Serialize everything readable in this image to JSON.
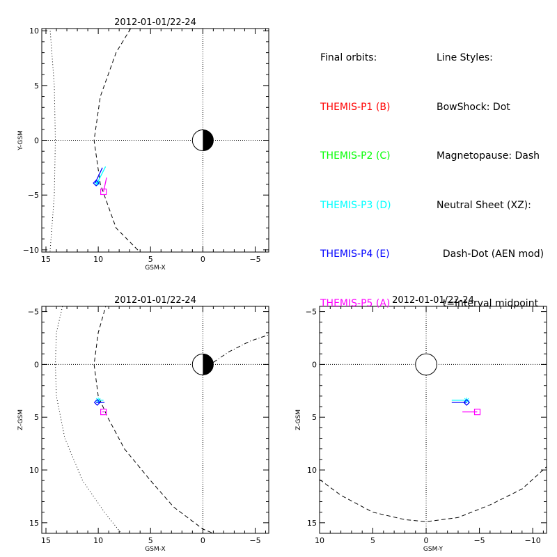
{
  "colors": {
    "p1": "#ff0000",
    "p2": "#00ff00",
    "p3": "#00ffff",
    "p4": "#0000ff",
    "p5": "#ff00ff",
    "axis": "#000000"
  },
  "legend": {
    "orbits_title": "Final orbits:",
    "probes": [
      {
        "label": "THEMIS-P1 (B)",
        "color": "#ff0000"
      },
      {
        "label": "THEMIS-P2 (C)",
        "color": "#00ff00"
      },
      {
        "label": "THEMIS-P3 (D)",
        "color": "#00ffff"
      },
      {
        "label": "THEMIS-P4 (E)",
        "color": "#0000ff"
      },
      {
        "label": "THEMIS-P5 (A)",
        "color": "#ff00ff"
      }
    ],
    "styles_title": "Line Styles:",
    "styles": [
      "BowShock: Dot",
      "Magnetopause: Dash",
      "Neutral Sheet (XZ):",
      "  Dash-Dot (AEN mod)",
      "  t=interval midpoint"
    ]
  },
  "chart_data": [
    {
      "id": "xy",
      "type": "scatter",
      "title": "2012-01-01/22-24",
      "xlabel": "GSM-X",
      "ylabel": "Y-GSM",
      "xlim": [
        15.4,
        -6.3
      ],
      "ylim": [
        10.2,
        -10.2
      ],
      "xticks": [
        15,
        10,
        5,
        0,
        -5
      ],
      "yticks": [
        -10,
        -5,
        0,
        5,
        10
      ],
      "grid": false,
      "zero_lines": true,
      "earth": {
        "x": 0,
        "y": 0,
        "r": 1
      },
      "bow_shock": [
        [
          15.5,
          19.6
        ],
        [
          14.8,
          12.6
        ],
        [
          14.2,
          5.0
        ],
        [
          14.1,
          0
        ],
        [
          14.2,
          -5.0
        ],
        [
          14.8,
          -12.6
        ],
        [
          15.5,
          -19.6
        ]
      ],
      "magnetopause": [
        [
          6.9,
          10.2
        ],
        [
          8.3,
          8.0
        ],
        [
          9.8,
          4.0
        ],
        [
          10.4,
          0
        ],
        [
          9.8,
          -4.0
        ],
        [
          8.3,
          -8.0
        ],
        [
          5.2,
          -11.0
        ]
      ],
      "neutral_sheet": [],
      "probes": [
        {
          "name": "THEMIS-P1",
          "track": [],
          "end": null,
          "symbol": "star"
        },
        {
          "name": "THEMIS-P2",
          "track": [],
          "end": null,
          "symbol": "plus"
        },
        {
          "name": "THEMIS-P3",
          "track": [
            [
              9.3,
              -2.4
            ],
            [
              10.1,
              -3.9
            ]
          ],
          "end": [
            10.1,
            -3.9
          ],
          "symbol": "star"
        },
        {
          "name": "THEMIS-P4",
          "track": [
            [
              9.6,
              -2.5
            ],
            [
              10.3,
              -3.9
            ]
          ],
          "end": [
            10.2,
            -3.9
          ],
          "symbol": "diamond"
        },
        {
          "name": "THEMIS-P5",
          "track": [
            [
              9.2,
              -3.4
            ],
            [
              9.5,
              -4.7
            ]
          ],
          "end": [
            9.5,
            -4.7
          ],
          "symbol": "square"
        }
      ]
    },
    {
      "id": "xz",
      "type": "scatter",
      "title": "2012-01-01/22-24",
      "xlabel": "GSM-X",
      "ylabel": "Z-GSM",
      "xlim": [
        15.4,
        -6.3
      ],
      "ylim": [
        -5.5,
        16.0
      ],
      "xticks": [
        15,
        10,
        5,
        0,
        -5
      ],
      "yticks": [
        -5,
        0,
        5,
        10,
        15
      ],
      "grid": false,
      "zero_lines": true,
      "earth": {
        "x": 0,
        "y": 0,
        "r": 1
      },
      "bow_shock": [
        [
          13.3,
          -6.0
        ],
        [
          14.0,
          -3.0
        ],
        [
          14.1,
          0
        ],
        [
          14.0,
          3.0
        ],
        [
          13.2,
          7.0
        ],
        [
          11.5,
          11.0
        ],
        [
          9.4,
          14.0
        ],
        [
          7.8,
          16.0
        ]
      ],
      "magnetopause": [
        [
          9.2,
          -5.8
        ],
        [
          10.0,
          -3.0
        ],
        [
          10.4,
          0
        ],
        [
          10.0,
          3.0
        ],
        [
          9.1,
          5.0
        ],
        [
          7.5,
          8.0
        ],
        [
          5.0,
          11.0
        ],
        [
          2.8,
          13.5
        ],
        [
          0,
          15.6
        ],
        [
          -1.0,
          16.0
        ]
      ],
      "neutral_sheet": [
        [
          -1.0,
          -0.2
        ],
        [
          -2.5,
          -1.2
        ],
        [
          -4.5,
          -2.2
        ],
        [
          -6.3,
          -2.8
        ]
      ],
      "probes": [
        {
          "name": "THEMIS-P1",
          "track": [],
          "end": null,
          "symbol": "star"
        },
        {
          "name": "THEMIS-P2",
          "track": [],
          "end": null,
          "symbol": "plus"
        },
        {
          "name": "THEMIS-P3",
          "track": [
            [
              9.5,
              3.4
            ],
            [
              10.1,
              3.4
            ]
          ],
          "end": [
            10.0,
            3.4
          ],
          "symbol": "star"
        },
        {
          "name": "THEMIS-P4",
          "track": [
            [
              9.4,
              3.6
            ],
            [
              10.2,
              3.6
            ]
          ],
          "end": [
            10.1,
            3.6
          ],
          "symbol": "diamond"
        },
        {
          "name": "THEMIS-P5",
          "track": [
            [
              9.4,
              4.5
            ],
            [
              9.6,
              4.5
            ]
          ],
          "end": [
            9.5,
            4.5
          ],
          "symbol": "square"
        }
      ]
    },
    {
      "id": "yz",
      "type": "scatter",
      "title": "2012-01-01/22-24",
      "xlabel": "GSM-Y",
      "ylabel": "Z-GSM",
      "xlim": [
        10.0,
        -11.3
      ],
      "ylim": [
        -5.5,
        16.0
      ],
      "xticks": [
        10,
        5,
        0,
        -5,
        -10
      ],
      "yticks": [
        -5,
        0,
        5,
        10,
        15
      ],
      "grid": false,
      "zero_lines": true,
      "earth": {
        "x": 0,
        "y": 0,
        "r": 1
      },
      "bow_shock": [],
      "magnetopause": [
        [
          10.0,
          10.9
        ],
        [
          8.0,
          12.4
        ],
        [
          5.0,
          14.0
        ],
        [
          2.0,
          14.7
        ],
        [
          0,
          14.9
        ],
        [
          -3.0,
          14.5
        ],
        [
          -6.0,
          13.3
        ],
        [
          -9.0,
          11.8
        ],
        [
          -11.3,
          9.7
        ]
      ],
      "neutral_sheet": [],
      "probes": [
        {
          "name": "THEMIS-P1",
          "track": [],
          "end": null,
          "symbol": "star"
        },
        {
          "name": "THEMIS-P2",
          "track": [],
          "end": null,
          "symbol": "plus"
        },
        {
          "name": "THEMIS-P3",
          "track": [
            [
              -2.4,
              3.4
            ],
            [
              -3.8,
              3.4
            ]
          ],
          "end": [
            -3.8,
            3.4
          ],
          "symbol": "star"
        },
        {
          "name": "THEMIS-P4",
          "track": [
            [
              -2.4,
              3.6
            ],
            [
              -3.8,
              3.6
            ]
          ],
          "end": [
            -3.8,
            3.6
          ],
          "symbol": "diamond"
        },
        {
          "name": "THEMIS-P5",
          "track": [
            [
              -3.4,
              4.5
            ],
            [
              -4.8,
              4.5
            ]
          ],
          "end": [
            -4.8,
            4.5
          ],
          "symbol": "square"
        }
      ]
    }
  ]
}
